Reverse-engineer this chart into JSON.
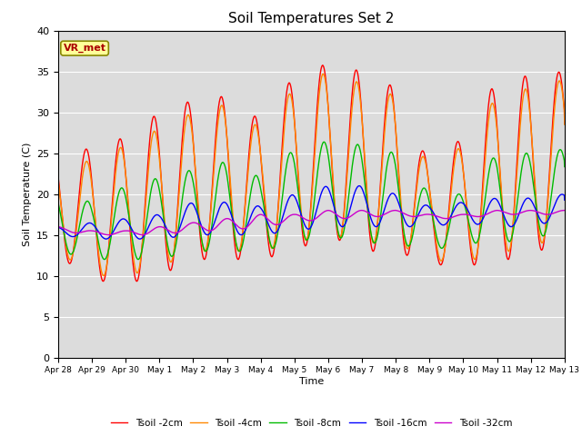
{
  "title": "Soil Temperatures Set 2",
  "xlabel": "Time",
  "ylabel": "Soil Temperature (C)",
  "ylim": [
    0,
    40
  ],
  "background_color": "#dcdcdc",
  "grid_color": "#ffffff",
  "annotation_text": "VR_met",
  "annotation_color": "#aa0000",
  "annotation_bg": "#ffff99",
  "annotation_border": "#888800",
  "x_tick_labels": [
    "Apr 28",
    "Apr 29",
    "Apr 30",
    "May 1",
    "May 2",
    "May 3",
    "May 4",
    "May 5",
    "May 6",
    "May 7",
    "May 8",
    "May 9",
    "May 10",
    "May 11",
    "May 12",
    "May 13"
  ],
  "series": [
    {
      "label": "Tsoil -2cm",
      "color": "#ff0000"
    },
    {
      "label": "Tsoil -4cm",
      "color": "#ff8800"
    },
    {
      "label": "Tsoil -8cm",
      "color": "#00bb00"
    },
    {
      "label": "Tsoil -16cm",
      "color": "#0000ff"
    },
    {
      "label": "Tsoil -32cm",
      "color": "#cc00cc"
    }
  ],
  "red_peaks": [
    25.5,
    25.5,
    27.0,
    30.0,
    31.5,
    32.0,
    29.0,
    34.5,
    36.0,
    35.0,
    33.0,
    23.5,
    27.0,
    34.0,
    34.5,
    35.0
  ],
  "red_troughs": [
    12.5,
    9.5,
    9.0,
    10.0,
    12.0,
    12.0,
    12.0,
    13.0,
    15.0,
    13.0,
    13.0,
    11.5,
    11.0,
    12.0,
    12.0,
    15.5
  ],
  "org_peaks": [
    24.0,
    24.0,
    26.0,
    28.0,
    30.0,
    31.0,
    28.0,
    33.0,
    35.0,
    33.5,
    32.0,
    23.0,
    26.0,
    32.0,
    33.0,
    34.0
  ],
  "org_troughs": [
    13.0,
    10.0,
    10.0,
    11.0,
    13.0,
    13.0,
    13.0,
    14.0,
    15.0,
    14.0,
    14.0,
    12.0,
    11.5,
    13.0,
    13.0,
    16.0
  ],
  "grn_peaks": [
    20.0,
    19.0,
    21.0,
    22.0,
    23.0,
    24.0,
    22.0,
    25.5,
    26.5,
    26.0,
    25.0,
    20.0,
    20.0,
    25.0,
    25.0,
    25.5
  ],
  "grn_troughs": [
    13.0,
    12.0,
    12.0,
    12.0,
    13.0,
    13.0,
    13.0,
    14.0,
    15.0,
    14.0,
    14.0,
    13.0,
    14.0,
    14.0,
    14.5,
    15.5
  ],
  "blu_peaks": [
    16.0,
    16.5,
    17.0,
    17.5,
    19.0,
    19.0,
    18.5,
    20.0,
    21.0,
    21.0,
    20.0,
    18.5,
    19.0,
    19.5,
    19.5,
    20.0
  ],
  "blu_troughs": [
    15.0,
    14.5,
    14.5,
    14.5,
    15.0,
    15.0,
    15.0,
    15.5,
    16.0,
    16.0,
    16.0,
    16.0,
    16.5,
    16.0,
    16.0,
    17.0
  ],
  "pur_peaks": [
    16.0,
    15.5,
    15.5,
    16.0,
    16.5,
    17.0,
    17.5,
    17.5,
    18.0,
    18.0,
    18.0,
    17.5,
    17.5,
    18.0,
    18.0,
    18.0
  ],
  "pur_troughs": [
    15.5,
    15.0,
    15.0,
    15.0,
    15.5,
    15.5,
    16.0,
    16.5,
    17.0,
    17.0,
    17.5,
    17.0,
    17.0,
    17.5,
    17.5,
    17.5
  ]
}
